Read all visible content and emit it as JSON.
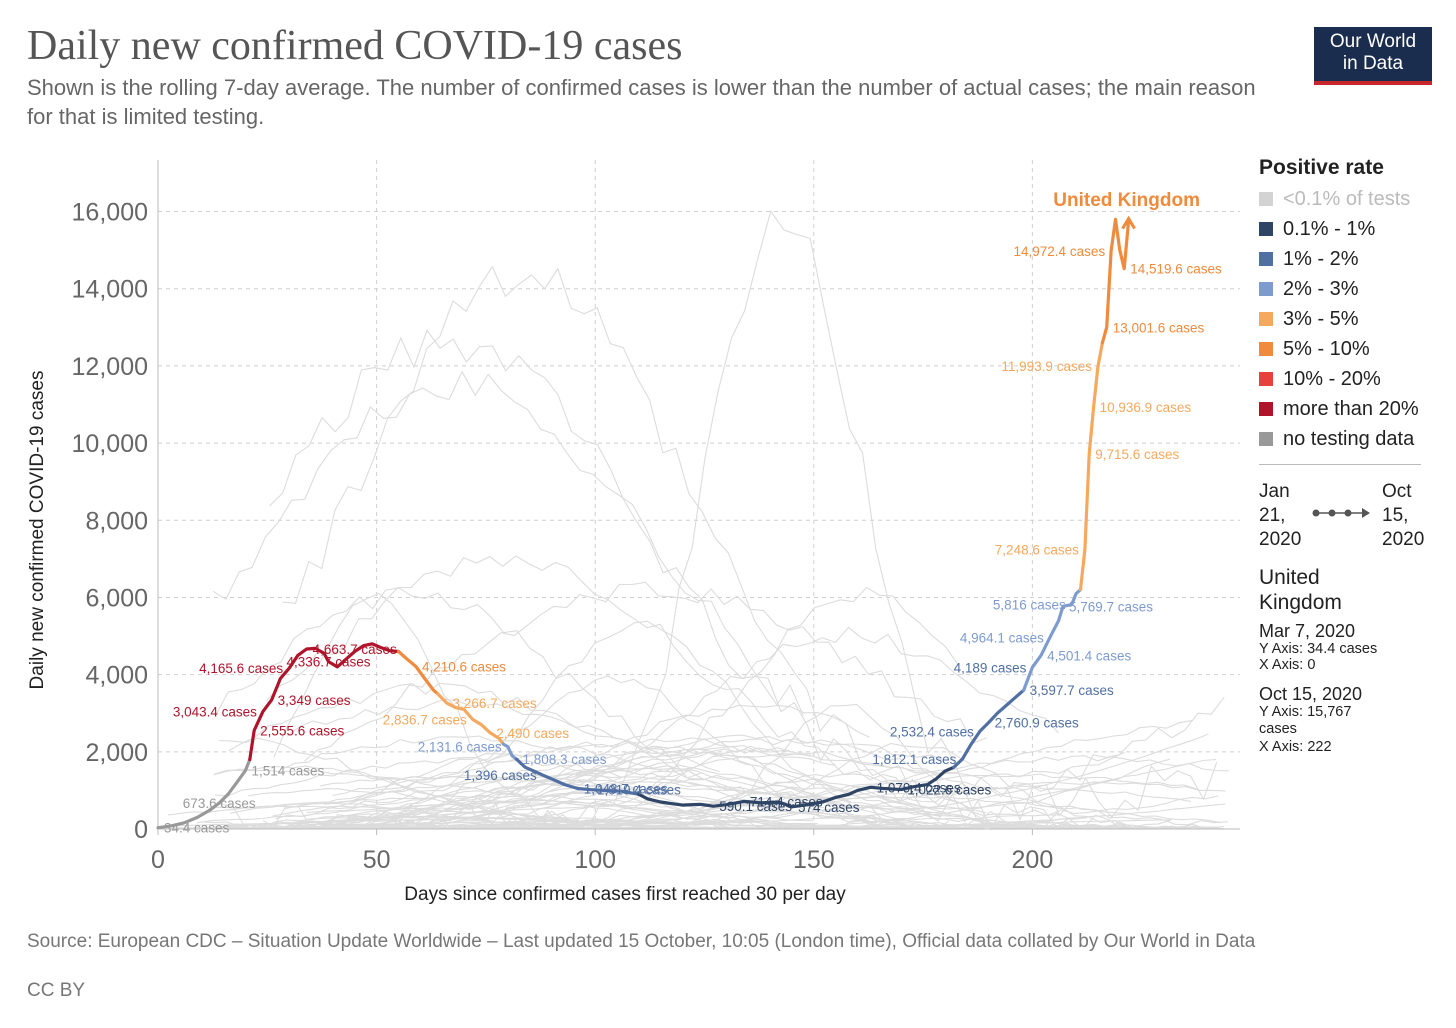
{
  "header": {
    "title": "Daily new confirmed COVID-19 cases",
    "subtitle": "Shown is the rolling 7-day average. The number of confirmed cases is lower than the number of actual cases; the main reason for that is limited testing.",
    "logo_line1": "Our World",
    "logo_line2": "in Data"
  },
  "legend": {
    "title": "Positive rate",
    "items": [
      {
        "label": "<0.1% of tests",
        "color": "#d3d3d3",
        "muted": true
      },
      {
        "label": "0.1% - 1%",
        "color": "#2f4565"
      },
      {
        "label": "1% - 2%",
        "color": "#506fa3"
      },
      {
        "label": "2% - 3%",
        "color": "#7e9bd0"
      },
      {
        "label": "3% - 5%",
        "color": "#f5a95f"
      },
      {
        "label": "5% - 10%",
        "color": "#f08a3c"
      },
      {
        "label": "10% - 20%",
        "color": "#e8403a"
      },
      {
        "label": "more than 20%",
        "color": "#b0142a"
      },
      {
        "label": "no testing data",
        "color": "#999999"
      }
    ]
  },
  "timeline": {
    "start_line1": "Jan",
    "start_line2": "21,",
    "start_line3": "2020",
    "end_line1": "Oct",
    "end_line2": "15,",
    "end_line3": "2020"
  },
  "info": {
    "country_line1": "United",
    "country_line2": "Kingdom",
    "start_date": "Mar 7, 2020",
    "start_y": "Y Axis: 34.4 cases",
    "start_x": "X Axis: 0",
    "end_date": "Oct 15, 2020",
    "end_y_line1": "Y Axis: 15,767",
    "end_y_line2": "cases",
    "end_x": "X Axis: 222"
  },
  "footer": {
    "source": "Source: European CDC – Situation Update Worldwide – Last updated 15 October, 10:05 (London time), Official data collated by Our World in Data",
    "license": "CC BY"
  },
  "chart_data": {
    "type": "line",
    "xlabel": "Days since confirmed cases first reached 30 per day",
    "ylabel": "Daily new confirmed COVID-19 cases",
    "xlim": [
      0,
      247
    ],
    "ylim": [
      0,
      17500
    ],
    "x_ticks": [
      0,
      50,
      100,
      150,
      200
    ],
    "x_tick_labels": [
      "0",
      "50",
      "100",
      "150",
      "200"
    ],
    "y_ticks": [
      0,
      2000,
      4000,
      6000,
      8000,
      10000,
      12000,
      14000,
      16000
    ],
    "y_tick_labels": [
      "0",
      "2,000",
      "4,000",
      "6,000",
      "8,000",
      "10,000",
      "12,000",
      "14,000",
      "16,000"
    ],
    "grid": true,
    "legend_position": "right",
    "highlighted_series": {
      "name": "United Kingdom",
      "color_key": "positive rate",
      "segments": [
        {
          "color": "#999999",
          "points": [
            [
              0,
              34.4
            ],
            [
              3,
              80
            ],
            [
              6,
              160
            ],
            [
              9,
              300
            ],
            [
              12,
              500
            ],
            [
              14,
              673.6
            ],
            [
              16,
              900
            ],
            [
              18,
              1200
            ],
            [
              20,
              1514
            ],
            [
              21,
              1800
            ]
          ]
        },
        {
          "color": "#b0142a",
          "points": [
            [
              21,
              1800
            ],
            [
              22,
              2555.6
            ],
            [
              24,
              3043.4
            ],
            [
              26,
              3349
            ],
            [
              28,
              3900
            ],
            [
              30,
              4165.6
            ],
            [
              32,
              4500
            ],
            [
              34,
              4663.7
            ],
            [
              36,
              4680
            ],
            [
              38,
              4550
            ],
            [
              39,
              4336.7
            ],
            [
              41,
              4200
            ],
            [
              43,
              4400
            ],
            [
              45,
              4600
            ],
            [
              47,
              4750
            ],
            [
              49,
              4800
            ],
            [
              51,
              4700
            ],
            [
              53,
              4620
            ],
            [
              55,
              4600
            ]
          ]
        },
        {
          "color": "#f08a3c",
          "points": [
            [
              55,
              4600
            ],
            [
              57,
              4400
            ],
            [
              59,
              4210.6
            ],
            [
              61,
              3900
            ],
            [
              63,
              3600
            ],
            [
              64,
              3500
            ]
          ]
        },
        {
          "color": "#f5a95f",
          "points": [
            [
              64,
              3500
            ],
            [
              66,
              3266.7
            ],
            [
              68,
              3150
            ],
            [
              70,
              3100
            ],
            [
              72,
              2836.7
            ],
            [
              74,
              2700
            ],
            [
              76,
              2490
            ],
            [
              78,
              2350
            ],
            [
              79,
              2200
            ]
          ]
        },
        {
          "color": "#7e9bd0",
          "points": [
            [
              79,
              2200
            ],
            [
              80,
              2131.6
            ],
            [
              81,
              1900
            ],
            [
              82,
              1808.3
            ]
          ]
        },
        {
          "color": "#506fa3",
          "points": [
            [
              82,
              1808.3
            ],
            [
              84,
              1600
            ],
            [
              86,
              1500
            ],
            [
              88,
              1396
            ],
            [
              90,
              1300
            ],
            [
              93,
              1150
            ],
            [
              96,
              1048.7
            ],
            [
              99,
              1019.4
            ],
            [
              102,
              1000
            ],
            [
              106,
              980
            ],
            [
              110,
              900
            ]
          ]
        },
        {
          "color": "#2f4565",
          "points": [
            [
              110,
              900
            ],
            [
              112,
              780
            ],
            [
              115,
              700
            ],
            [
              118,
              650
            ],
            [
              120,
              620
            ],
            [
              124,
              640
            ],
            [
              127,
              590.1
            ],
            [
              130,
              630
            ],
            [
              134,
              714.4
            ],
            [
              138,
              680
            ],
            [
              142,
              700
            ],
            [
              145,
              574
            ],
            [
              148,
              620
            ],
            [
              152,
              700
            ],
            [
              155,
              820
            ],
            [
              158,
              900
            ],
            [
              160,
              1000
            ],
            [
              163,
              1079.4
            ],
            [
              166,
              1050
            ],
            [
              170,
              1022.6
            ],
            [
              173,
              1100
            ],
            [
              176,
              1150
            ],
            [
              178,
              1300
            ],
            [
              180,
              1500
            ],
            [
              182,
              1600
            ]
          ]
        },
        {
          "color": "#506fa3",
          "points": [
            [
              182,
              1600
            ],
            [
              184,
              1812.1
            ],
            [
              186,
              2200
            ],
            [
              188,
              2532.4
            ],
            [
              190,
              2760.9
            ],
            [
              192,
              3000
            ],
            [
              194,
              3200
            ],
            [
              196,
              3400
            ],
            [
              198,
              3597.7
            ]
          ]
        },
        {
          "color": "#7e9bd0",
          "points": [
            [
              198,
              3597.7
            ],
            [
              200,
              4189
            ],
            [
              202,
              4501.4
            ],
            [
              204,
              4964.1
            ],
            [
              206,
              5400
            ],
            [
              207,
              5769.7
            ],
            [
              209,
              5816
            ],
            [
              210,
              6100
            ],
            [
              211,
              6200
            ]
          ]
        },
        {
          "color": "#f5a95f",
          "points": [
            [
              211,
              6200
            ],
            [
              212,
              7248.6
            ],
            [
              213,
              9715.6
            ],
            [
              214,
              10936.9
            ],
            [
              215,
              11993.9
            ],
            [
              216,
              12600
            ]
          ]
        },
        {
          "color": "#f08a3c",
          "points": [
            [
              216,
              12600
            ],
            [
              217,
              13001.6
            ],
            [
              218,
              14972.4
            ],
            [
              219,
              15800
            ],
            [
              220,
              15000
            ],
            [
              221,
              14519.6
            ],
            [
              222,
              15767
            ]
          ]
        }
      ]
    },
    "data_labels": [
      {
        "x": 0,
        "y": 34.4,
        "text": "34.4 cases",
        "color": "#999999",
        "anchor": "start"
      },
      {
        "x": 14,
        "y": 673.6,
        "text": "673.6 cases",
        "color": "#999999",
        "anchor": "middle"
      },
      {
        "x": 20,
        "y": 1514,
        "text": "1,514 cases",
        "color": "#999999",
        "anchor": "start"
      },
      {
        "x": 22,
        "y": 2555.6,
        "text": "2,555.6 cases",
        "color": "#b0142a",
        "anchor": "start"
      },
      {
        "x": 24,
        "y": 3043.4,
        "text": "3,043.4 cases",
        "color": "#b0142a",
        "anchor": "end"
      },
      {
        "x": 26,
        "y": 3349,
        "text": "3,349 cases",
        "color": "#b0142a",
        "anchor": "start"
      },
      {
        "x": 30,
        "y": 4165.6,
        "text": "4,165.6 cases",
        "color": "#b0142a",
        "anchor": "end"
      },
      {
        "x": 34,
        "y": 4663.7,
        "text": "4,663.7 cases",
        "color": "#b0142a",
        "anchor": "start"
      },
      {
        "x": 39,
        "y": 4336.7,
        "text": "4,336.7 cases",
        "color": "#b0142a",
        "anchor": "middle"
      },
      {
        "x": 59,
        "y": 4210.6,
        "text": "4,210.6 cases",
        "color": "#f08a3c",
        "anchor": "start"
      },
      {
        "x": 66,
        "y": 3266.7,
        "text": "3,266.7 cases",
        "color": "#f5a95f",
        "anchor": "start"
      },
      {
        "x": 72,
        "y": 2836.7,
        "text": "2,836.7 cases",
        "color": "#f5a95f",
        "anchor": "end"
      },
      {
        "x": 76,
        "y": 2490,
        "text": "2,490 cases",
        "color": "#f5a95f",
        "anchor": "start"
      },
      {
        "x": 80,
        "y": 2131.6,
        "text": "2,131.6 cases",
        "color": "#7e9bd0",
        "anchor": "end"
      },
      {
        "x": 82,
        "y": 1808.3,
        "text": "1,808.3 cases",
        "color": "#7e9bd0",
        "anchor": "start"
      },
      {
        "x": 88,
        "y": 1396,
        "text": "1,396 cases",
        "color": "#506fa3",
        "anchor": "end"
      },
      {
        "x": 96,
        "y": 1048.7,
        "text": "1,048.7 cases",
        "color": "#506fa3",
        "anchor": "start"
      },
      {
        "x": 99,
        "y": 1019.4,
        "text": "1,019.4 cases",
        "color": "#506fa3",
        "anchor": "start"
      },
      {
        "x": 127,
        "y": 590.1,
        "text": "590.1 cases",
        "color": "#2f4565",
        "anchor": "start"
      },
      {
        "x": 134,
        "y": 714.4,
        "text": "714.4 cases",
        "color": "#2f4565",
        "anchor": "start"
      },
      {
        "x": 145,
        "y": 574,
        "text": "574 cases",
        "color": "#2f4565",
        "anchor": "start"
      },
      {
        "x": 163,
        "y": 1079.4,
        "text": "1,079.4 cases",
        "color": "#2f4565",
        "anchor": "start"
      },
      {
        "x": 170,
        "y": 1022.6,
        "text": "1,022.6 cases",
        "color": "#2f4565",
        "anchor": "start"
      },
      {
        "x": 184,
        "y": 1812.1,
        "text": "1,812.1 cases",
        "color": "#506fa3",
        "anchor": "end"
      },
      {
        "x": 188,
        "y": 2532.4,
        "text": "2,532.4 cases",
        "color": "#506fa3",
        "anchor": "end"
      },
      {
        "x": 190,
        "y": 2760.9,
        "text": "2,760.9 cases",
        "color": "#506fa3",
        "anchor": "start"
      },
      {
        "x": 198,
        "y": 3597.7,
        "text": "3,597.7 cases",
        "color": "#506fa3",
        "anchor": "start"
      },
      {
        "x": 200,
        "y": 4189,
        "text": "4,189 cases",
        "color": "#506fa3",
        "anchor": "end"
      },
      {
        "x": 202,
        "y": 4501.4,
        "text": "4,501.4 cases",
        "color": "#7e9bd0",
        "anchor": "start"
      },
      {
        "x": 204,
        "y": 4964.1,
        "text": "4,964.1 cases",
        "color": "#7e9bd0",
        "anchor": "end"
      },
      {
        "x": 207,
        "y": 5769.7,
        "text": "5,769.7 cases",
        "color": "#7e9bd0",
        "anchor": "start"
      },
      {
        "x": 209,
        "y": 5816,
        "text": "5,816 cases",
        "color": "#7e9bd0",
        "anchor": "end"
      },
      {
        "x": 212,
        "y": 7248.6,
        "text": "7,248.6 cases",
        "color": "#f5a95f",
        "anchor": "end"
      },
      {
        "x": 213,
        "y": 9715.6,
        "text": "9,715.6 cases",
        "color": "#f5a95f",
        "anchor": "start"
      },
      {
        "x": 214,
        "y": 10936.9,
        "text": "10,936.9 cases",
        "color": "#f5a95f",
        "anchor": "start"
      },
      {
        "x": 215,
        "y": 11993.9,
        "text": "11,993.9 cases",
        "color": "#f5a95f",
        "anchor": "end"
      },
      {
        "x": 217,
        "y": 13001.6,
        "text": "13,001.6 cases",
        "color": "#f08a3c",
        "anchor": "start"
      },
      {
        "x": 218,
        "y": 14972.4,
        "text": "14,972.4 cases",
        "color": "#f08a3c",
        "anchor": "end"
      },
      {
        "x": 221,
        "y": 14519.6,
        "text": "14,519.6 cases",
        "color": "#f08a3c",
        "anchor": "start"
      }
    ],
    "series_label": {
      "x": 206,
      "y": 16300,
      "text": "United Kingdom",
      "color": "#f08a3c"
    }
  }
}
